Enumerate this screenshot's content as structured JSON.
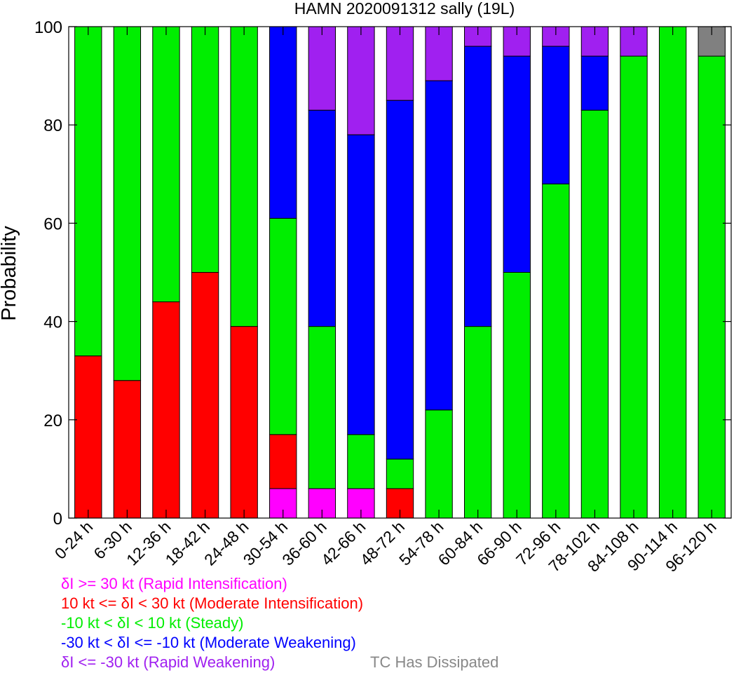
{
  "chart_data": {
    "type": "bar",
    "stacked": true,
    "title": "HAMN 2020091312 sally (19L)",
    "ylabel": "Probability",
    "xlabel": "",
    "ylim": [
      0,
      100
    ],
    "yticks": [
      0,
      20,
      40,
      60,
      80,
      100
    ],
    "grid": false,
    "categories": [
      "0-24 h",
      "6-30 h",
      "12-36 h",
      "18-42 h",
      "24-48 h",
      "30-54 h",
      "36-60 h",
      "42-66 h",
      "48-72 h",
      "54-78 h",
      "60-84 h",
      "66-90 h",
      "72-96 h",
      "78-102 h",
      "84-108 h",
      "90-114 h",
      "96-120 h"
    ],
    "series": [
      {
        "key": "ri",
        "name": "δI >= 30 kt (Rapid Intensification)",
        "color": "#ff00ff",
        "values": [
          0,
          0,
          0,
          0,
          0,
          6,
          6,
          6,
          0,
          0,
          0,
          0,
          0,
          0,
          0,
          0,
          0
        ]
      },
      {
        "key": "mi",
        "name": "10 kt <= δI < 30 kt (Moderate Intensification)",
        "color": "#ff0000",
        "values": [
          33,
          28,
          44,
          50,
          39,
          11,
          0,
          0,
          6,
          0,
          0,
          0,
          0,
          0,
          0,
          0,
          0
        ]
      },
      {
        "key": "st",
        "name": "-10 kt < δI < 10 kt (Steady)",
        "color": "#00ee00",
        "values": [
          67,
          72,
          56,
          50,
          61,
          44,
          33,
          11,
          6,
          22,
          39,
          50,
          68,
          83,
          94,
          100,
          94
        ]
      },
      {
        "key": "mw",
        "name": "-30 kt < δI <= -10 kt (Moderate Weakening)",
        "color": "#0000ff",
        "values": [
          0,
          0,
          0,
          0,
          0,
          39,
          44,
          61,
          73,
          67,
          57,
          44,
          28,
          11,
          0,
          0,
          0
        ]
      },
      {
        "key": "rw",
        "name": "δI <= -30 kt (Rapid Weakening)",
        "color": "#a020f0",
        "values": [
          0,
          0,
          0,
          0,
          0,
          0,
          17,
          22,
          15,
          11,
          4,
          6,
          4,
          6,
          6,
          0,
          0
        ]
      },
      {
        "key": "td",
        "name": "TC Has Dissipated",
        "color": "#808080",
        "values": [
          0,
          0,
          0,
          0,
          0,
          0,
          0,
          0,
          0,
          0,
          0,
          0,
          0,
          0,
          0,
          0,
          6
        ]
      }
    ],
    "legend_placement": "bottom-left"
  }
}
